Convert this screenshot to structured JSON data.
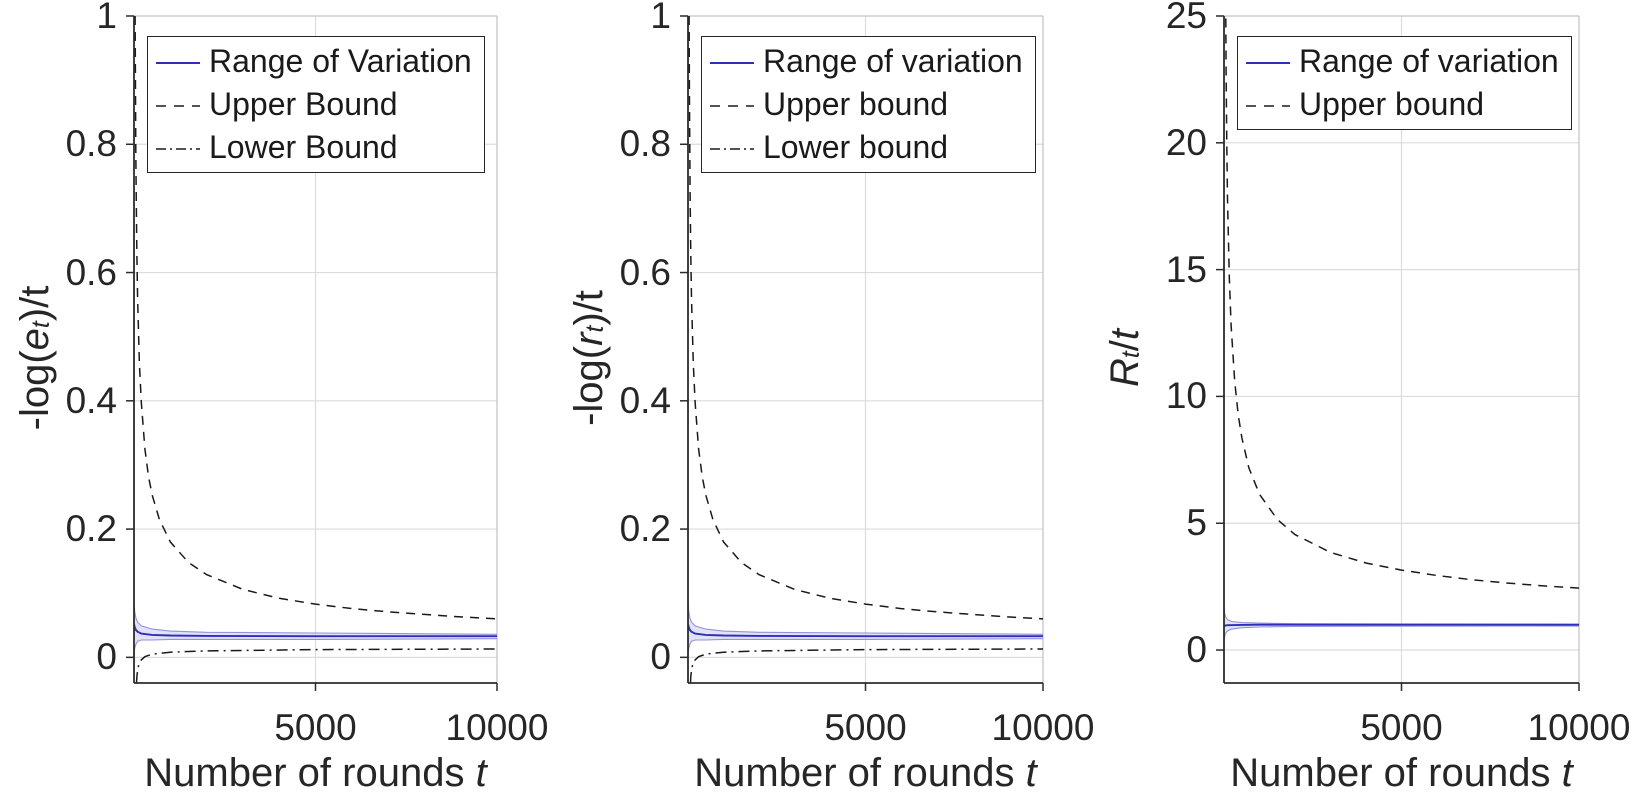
{
  "palette": {
    "line_blue": "#2e2eb8",
    "band_fill": "#c9c9f1",
    "band_edge": "#9393de",
    "line_black": "#1a1a1a",
    "grid": "#dcdcdc",
    "spine_dark": "#2b2b2b",
    "spine_light": "#c9c9c9",
    "text": "#262626",
    "legend_border": "#262626",
    "background": "#ffffff"
  },
  "chart_data": [
    {
      "type": "line",
      "title": "",
      "xlabel": "Number of rounds t",
      "ylabel": "-log(e_t)/t",
      "xlabel_parts": [
        {
          "t": "Number of rounds ",
          "i": false,
          "s": false
        },
        {
          "t": "t",
          "i": true,
          "s": false
        }
      ],
      "ylabel_parts": [
        {
          "t": "-log(",
          "i": false,
          "s": false
        },
        {
          "t": "e",
          "i": true,
          "s": false
        },
        {
          "t": "t",
          "i": true,
          "s": true
        },
        {
          "t": ")/t",
          "i": false,
          "s": false
        }
      ],
      "xlim": [
        0,
        10000
      ],
      "ylim": [
        -0.04,
        1
      ],
      "xticks": [
        5000,
        10000
      ],
      "xtick_labels": [
        "5000",
        "10000"
      ],
      "yticks": [
        0,
        0.2,
        0.4,
        0.6,
        0.8,
        1
      ],
      "ytick_labels": [
        "0",
        "0.2",
        "0.4",
        "0.6",
        "0.8",
        "1"
      ],
      "grid": true,
      "legend_position": "top-left-inside",
      "legend": [
        {
          "label": "Range of Variation",
          "style": "solid",
          "color": "line_blue"
        },
        {
          "label": "Upper Bound",
          "style": "dashed",
          "color": "line_black"
        },
        {
          "label": "Lower Bound",
          "style": "dashdot",
          "color": "line_black"
        }
      ],
      "band": {
        "x": [
          1,
          20,
          50,
          100,
          200,
          500,
          1000,
          2000,
          5000,
          10000
        ],
        "upper": [
          0.088,
          0.072,
          0.062,
          0.055,
          0.049,
          0.044,
          0.041,
          0.039,
          0.038,
          0.036
        ],
        "lower": [
          0.004,
          0.014,
          0.02,
          0.025,
          0.027,
          0.027,
          0.028,
          0.028,
          0.028,
          0.029
        ]
      },
      "series": [
        {
          "name": "Range of Variation",
          "style": "solid",
          "color": "line_blue",
          "x": [
            1,
            20,
            50,
            100,
            200,
            500,
            1000,
            2000,
            5000,
            10000
          ],
          "y": [
            0.052,
            0.047,
            0.043,
            0.04,
            0.037,
            0.035,
            0.034,
            0.0335,
            0.033,
            0.033
          ]
        },
        {
          "name": "Upper Bound",
          "style": "dashed",
          "color": "line_black",
          "x": [
            31,
            40,
            50,
            60,
            80,
            100,
            150,
            200,
            300,
            400,
            500,
            700,
            1000,
            1500,
            2000,
            3000,
            4000,
            5000,
            6000,
            7000,
            8000,
            9000,
            10000
          ],
          "y": [
            1.0,
            0.883,
            0.791,
            0.722,
            0.626,
            0.56,
            0.458,
            0.398,
            0.325,
            0.282,
            0.253,
            0.215,
            0.18,
            0.148,
            0.129,
            0.106,
            0.092,
            0.083,
            0.076,
            0.071,
            0.067,
            0.063,
            0.06
          ]
        },
        {
          "name": "Lower Bound",
          "style": "dashdot",
          "color": "line_black",
          "x": [
            70,
            80,
            100,
            130,
            200,
            300,
            500,
            1000,
            2000,
            5000,
            10000
          ],
          "y": [
            -0.04,
            -0.03,
            -0.02,
            -0.012,
            -0.004,
            0.001,
            0.005,
            0.008,
            0.01,
            0.012,
            0.013
          ]
        }
      ]
    },
    {
      "type": "line",
      "title": "",
      "xlabel": "Number of rounds t",
      "ylabel": "-log(r_t)/t",
      "xlabel_parts": [
        {
          "t": "Number of rounds ",
          "i": false,
          "s": false
        },
        {
          "t": "t",
          "i": true,
          "s": false
        }
      ],
      "ylabel_parts": [
        {
          "t": "-log(",
          "i": false,
          "s": false
        },
        {
          "t": "r",
          "i": true,
          "s": false
        },
        {
          "t": "t",
          "i": true,
          "s": true
        },
        {
          "t": ")/t",
          "i": false,
          "s": false
        }
      ],
      "xlim": [
        0,
        10000
      ],
      "ylim": [
        -0.04,
        1
      ],
      "xticks": [
        5000,
        10000
      ],
      "xtick_labels": [
        "5000",
        "10000"
      ],
      "yticks": [
        0,
        0.2,
        0.4,
        0.6,
        0.8,
        1
      ],
      "ytick_labels": [
        "0",
        "0.2",
        "0.4",
        "0.6",
        "0.8",
        "1"
      ],
      "grid": true,
      "legend_position": "top-left-inside",
      "legend": [
        {
          "label": "Range of variation",
          "style": "solid",
          "color": "line_blue"
        },
        {
          "label": "Upper bound",
          "style": "dashed",
          "color": "line_black"
        },
        {
          "label": "Lower bound",
          "style": "dashdot",
          "color": "line_black"
        }
      ],
      "band": {
        "x": [
          1,
          20,
          50,
          100,
          200,
          500,
          1000,
          2000,
          5000,
          10000
        ],
        "upper": [
          0.088,
          0.072,
          0.062,
          0.055,
          0.049,
          0.044,
          0.041,
          0.039,
          0.038,
          0.036
        ],
        "lower": [
          0.004,
          0.014,
          0.02,
          0.025,
          0.027,
          0.027,
          0.028,
          0.028,
          0.028,
          0.029
        ]
      },
      "series": [
        {
          "name": "Range of variation",
          "style": "solid",
          "color": "line_blue",
          "x": [
            1,
            20,
            50,
            100,
            200,
            500,
            1000,
            2000,
            5000,
            10000
          ],
          "y": [
            0.052,
            0.047,
            0.043,
            0.04,
            0.037,
            0.035,
            0.034,
            0.0335,
            0.033,
            0.033
          ]
        },
        {
          "name": "Upper bound",
          "style": "dashed",
          "color": "line_black",
          "x": [
            31,
            40,
            50,
            60,
            80,
            100,
            150,
            200,
            300,
            400,
            500,
            700,
            1000,
            1500,
            2000,
            3000,
            4000,
            5000,
            6000,
            7000,
            8000,
            9000,
            10000
          ],
          "y": [
            1.0,
            0.883,
            0.791,
            0.722,
            0.626,
            0.56,
            0.458,
            0.398,
            0.325,
            0.282,
            0.253,
            0.215,
            0.18,
            0.148,
            0.129,
            0.106,
            0.092,
            0.083,
            0.076,
            0.071,
            0.067,
            0.063,
            0.06
          ]
        },
        {
          "name": "Lower bound",
          "style": "dashdot",
          "color": "line_black",
          "x": [
            70,
            80,
            100,
            130,
            200,
            300,
            500,
            1000,
            2000,
            5000,
            10000
          ],
          "y": [
            -0.04,
            -0.03,
            -0.02,
            -0.012,
            -0.004,
            0.001,
            0.005,
            0.008,
            0.01,
            0.012,
            0.013
          ]
        }
      ]
    },
    {
      "type": "line",
      "title": "",
      "xlabel": "Number of rounds t",
      "ylabel": "R_t /t",
      "xlabel_parts": [
        {
          "t": "Number of rounds ",
          "i": false,
          "s": false
        },
        {
          "t": "t",
          "i": true,
          "s": false
        }
      ],
      "ylabel_parts": [
        {
          "t": "R",
          "i": true,
          "s": false
        },
        {
          "t": "t",
          "i": true,
          "s": true
        },
        {
          "t": " /",
          "i": false,
          "s": false
        },
        {
          "t": "t",
          "i": true,
          "s": false
        }
      ],
      "xlim": [
        0,
        10000
      ],
      "ylim": [
        -1.3,
        25
      ],
      "xticks": [
        5000,
        10000
      ],
      "xtick_labels": [
        "5000",
        "10000"
      ],
      "yticks": [
        0,
        5,
        10,
        15,
        20,
        25
      ],
      "ytick_labels": [
        "0",
        "5",
        "10",
        "15",
        "20",
        "25"
      ],
      "grid": true,
      "legend_position": "top-left-inside",
      "legend": [
        {
          "label": "Range of variation",
          "style": "solid",
          "color": "line_blue"
        },
        {
          "label": "Upper bound",
          "style": "dashed",
          "color": "line_black"
        }
      ],
      "band": {
        "x": [
          1,
          20,
          50,
          100,
          200,
          500,
          1000,
          2000,
          5000,
          10000
        ],
        "upper": [
          1.75,
          1.45,
          1.3,
          1.2,
          1.13,
          1.08,
          1.06,
          1.04,
          1.03,
          1.02
        ],
        "lower": [
          0.3,
          0.55,
          0.67,
          0.75,
          0.82,
          0.88,
          0.91,
          0.93,
          0.94,
          0.945
        ]
      },
      "series": [
        {
          "name": "Range of variation",
          "style": "solid",
          "color": "line_blue",
          "x": [
            1,
            50,
            100,
            500,
            1000,
            5000,
            10000
          ],
          "y": [
            0.95,
            0.97,
            0.98,
            0.99,
            1.0,
            1.0,
            1.0
          ]
        },
        {
          "name": "Upper bound",
          "style": "dashed",
          "color": "line_black",
          "x": [
            50,
            60,
            80,
            100,
            150,
            200,
            300,
            400,
            500,
            700,
            1000,
            1500,
            2000,
            3000,
            4000,
            5000,
            6000,
            7000,
            8000,
            9000,
            10000
          ],
          "y": [
            24.9,
            22.8,
            19.9,
            17.8,
            14.7,
            12.8,
            10.6,
            9.28,
            8.38,
            7.19,
            6.14,
            5.15,
            4.55,
            3.85,
            3.43,
            3.15,
            2.94,
            2.77,
            2.64,
            2.53,
            2.44
          ]
        }
      ]
    }
  ]
}
